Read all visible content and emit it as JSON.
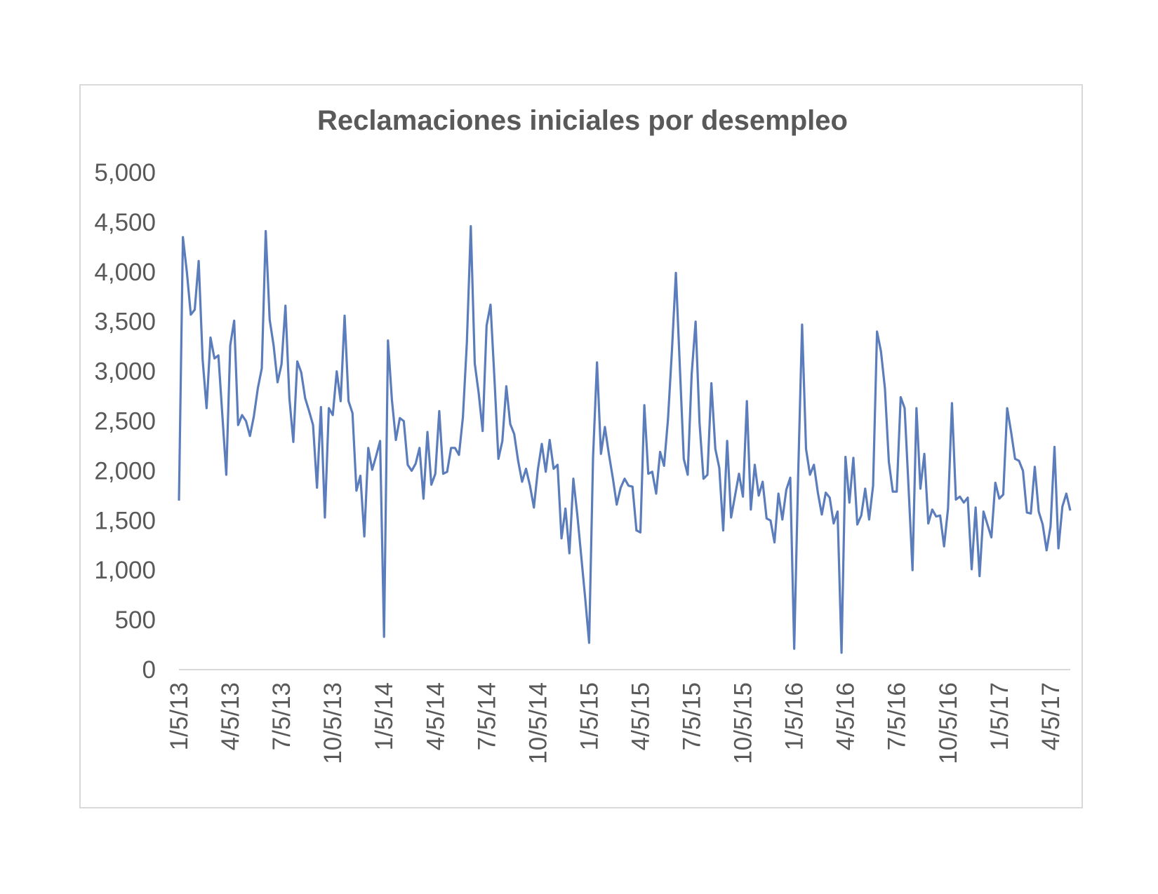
{
  "chart_data": {
    "type": "line",
    "title": "Reclamaciones iniciales por desempleo",
    "xlabel": "",
    "ylabel": "",
    "ylim": [
      0,
      5000
    ],
    "y_ticks": [
      "0",
      "500",
      "1,000",
      "1,500",
      "2,000",
      "2,500",
      "3,000",
      "3,500",
      "4,000",
      "4,500",
      "5,000"
    ],
    "x_ticks": [
      "1/5/13",
      "4/5/13",
      "7/5/13",
      "10/5/13",
      "1/5/14",
      "4/5/14",
      "7/5/14",
      "10/5/14",
      "1/5/15",
      "4/5/15",
      "7/5/15",
      "10/5/15",
      "1/5/16",
      "4/5/16",
      "7/5/16",
      "10/5/16",
      "1/5/17",
      "4/5/17"
    ],
    "grid": false,
    "legend": "none",
    "line_color": "#5b7dbb",
    "x_start": "1/5/13",
    "x_frequency": "weekly",
    "series": [
      {
        "values": [
          1700,
          4350,
          4000,
          3570,
          3620,
          4110,
          3120,
          2630,
          3340,
          3130,
          3160,
          2560,
          1960,
          3260,
          3510,
          2460,
          2560,
          2500,
          2350,
          2550,
          2830,
          3030,
          4410,
          3520,
          3260,
          2890,
          3070,
          3660,
          2730,
          2290,
          3100,
          2990,
          2730,
          2600,
          2460,
          1830,
          2640,
          1530,
          2630,
          2560,
          3000,
          2700,
          3560,
          2700,
          2580,
          1800,
          1950,
          1340,
          2230,
          2010,
          2150,
          2300,
          330,
          3310,
          2710,
          2310,
          2530,
          2500,
          2060,
          2000,
          2070,
          2230,
          1720,
          2390,
          1860,
          1970,
          2600,
          1970,
          1990,
          2230,
          2230,
          2160,
          2540,
          3290,
          4460,
          3080,
          2780,
          2400,
          3460,
          3670,
          2920,
          2120,
          2300,
          2850,
          2470,
          2370,
          2100,
          1890,
          2020,
          1850,
          1630,
          2010,
          2270,
          1990,
          2310,
          2020,
          2060,
          1320,
          1620,
          1170,
          1920,
          1560,
          1140,
          720,
          270,
          2140,
          3090,
          2170,
          2440,
          2170,
          1930,
          1660,
          1830,
          1920,
          1850,
          1840,
          1400,
          1380,
          2660,
          1970,
          1990,
          1770,
          2190,
          2050,
          2520,
          3210,
          3990,
          3050,
          2120,
          1960,
          2970,
          3500,
          2480,
          1920,
          1960,
          2880,
          2220,
          2030,
          1400,
          2300,
          1530,
          1750,
          1970,
          1740,
          2700,
          1610,
          2060,
          1750,
          1890,
          1520,
          1500,
          1280,
          1770,
          1510,
          1810,
          1930,
          210,
          1950,
          3470,
          2220,
          1960,
          2060,
          1780,
          1560,
          1780,
          1730,
          1470,
          1590,
          170,
          2140,
          1680,
          2130,
          1460,
          1550,
          1820,
          1510,
          1850,
          3400,
          3200,
          2830,
          2090,
          1790,
          1790,
          2740,
          2630,
          1830,
          1000,
          2630,
          1820,
          2170,
          1470,
          1610,
          1540,
          1550,
          1240,
          1620,
          2680,
          1710,
          1740,
          1680,
          1730,
          1010,
          1630,
          940,
          1590,
          1460,
          1330,
          1880,
          1720,
          1760,
          2630,
          2390,
          2120,
          2100,
          2000,
          1580,
          1570,
          2040,
          1590,
          1460,
          1200,
          1440,
          2240,
          1220,
          1640,
          1770,
          1600
        ]
      }
    ]
  }
}
